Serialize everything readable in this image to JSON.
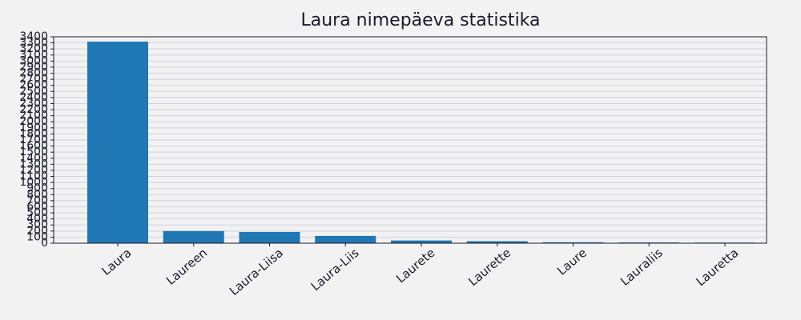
{
  "chart_data": {
    "type": "bar",
    "title": "Laura nimepäeva statistika",
    "categories": [
      "Laura",
      "Laureen",
      "Laura-Liisa",
      "Laura-Liis",
      "Laurete",
      "Laurette",
      "Laure",
      "Lauraliis",
      "Lauretta"
    ],
    "values": [
      3320,
      200,
      185,
      120,
      45,
      33,
      15,
      12,
      10
    ],
    "color": "#1f77b4",
    "ylim": [
      0,
      3400
    ],
    "yticks": [
      0,
      100,
      200,
      300,
      400,
      500,
      600,
      700,
      800,
      900,
      1000,
      1100,
      1200,
      1300,
      1400,
      1500,
      1600,
      1700,
      1800,
      1900,
      2000,
      2100,
      2200,
      2300,
      2400,
      2500,
      2600,
      2700,
      2800,
      2900,
      3000,
      3100,
      3200,
      3300,
      3400
    ],
    "grid": true
  }
}
